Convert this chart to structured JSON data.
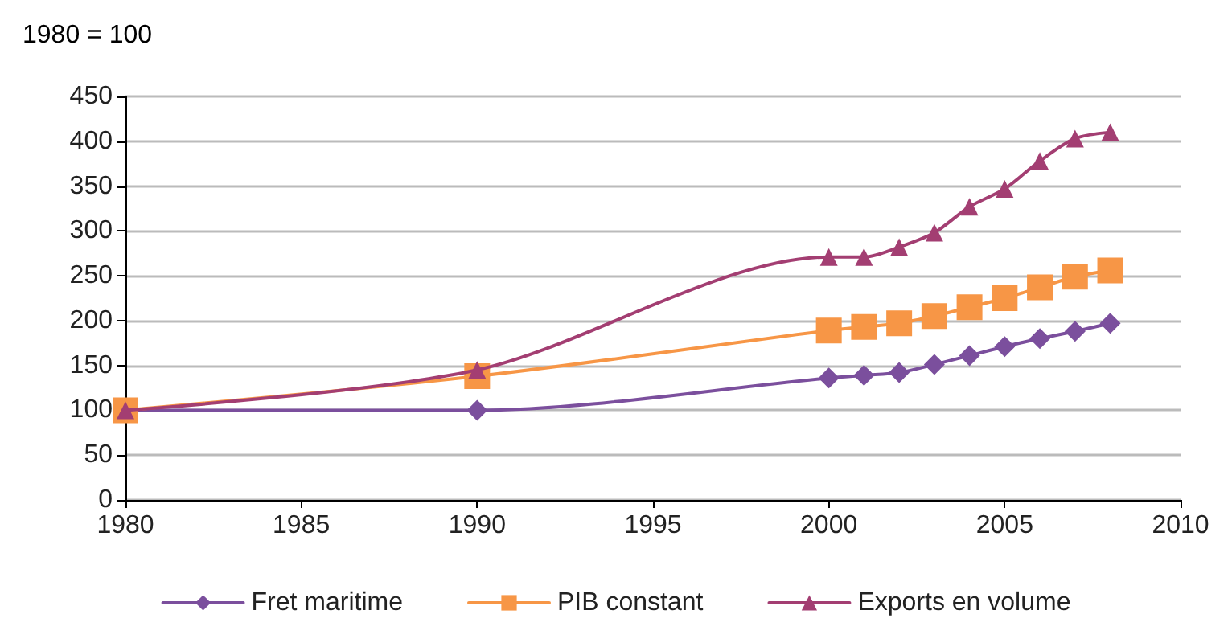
{
  "chart_data": {
    "type": "line",
    "ylabel": "1980 = 100",
    "x": [
      1980,
      1990,
      2000,
      2001,
      2002,
      2003,
      2004,
      2005,
      2006,
      2007,
      2008
    ],
    "series": [
      {
        "name": "Fret maritime",
        "color": "#7b4f9d",
        "marker": "diamond",
        "values": [
          100,
          100,
          136,
          139,
          142,
          151,
          161,
          171,
          180,
          188,
          197
        ]
      },
      {
        "name": "PIB constant",
        "color": "#f79646",
        "marker": "square",
        "values": [
          100,
          138,
          189,
          193,
          197,
          205,
          215,
          225,
          237,
          249,
          256
        ]
      },
      {
        "name": "Exports en volume",
        "color": "#a33e72",
        "marker": "triangle",
        "values": [
          100,
          145,
          271,
          271,
          282,
          298,
          327,
          347,
          378,
          403,
          410
        ]
      }
    ],
    "xlim": [
      1980,
      2010
    ],
    "xticks": [
      1980,
      1985,
      1990,
      1995,
      2000,
      2005,
      2010
    ],
    "ylim": [
      0,
      450
    ],
    "yticks": [
      0,
      50,
      100,
      150,
      200,
      250,
      300,
      350,
      400,
      450
    ],
    "grid": "y",
    "legend": "bottom",
    "line_style": "solid"
  }
}
